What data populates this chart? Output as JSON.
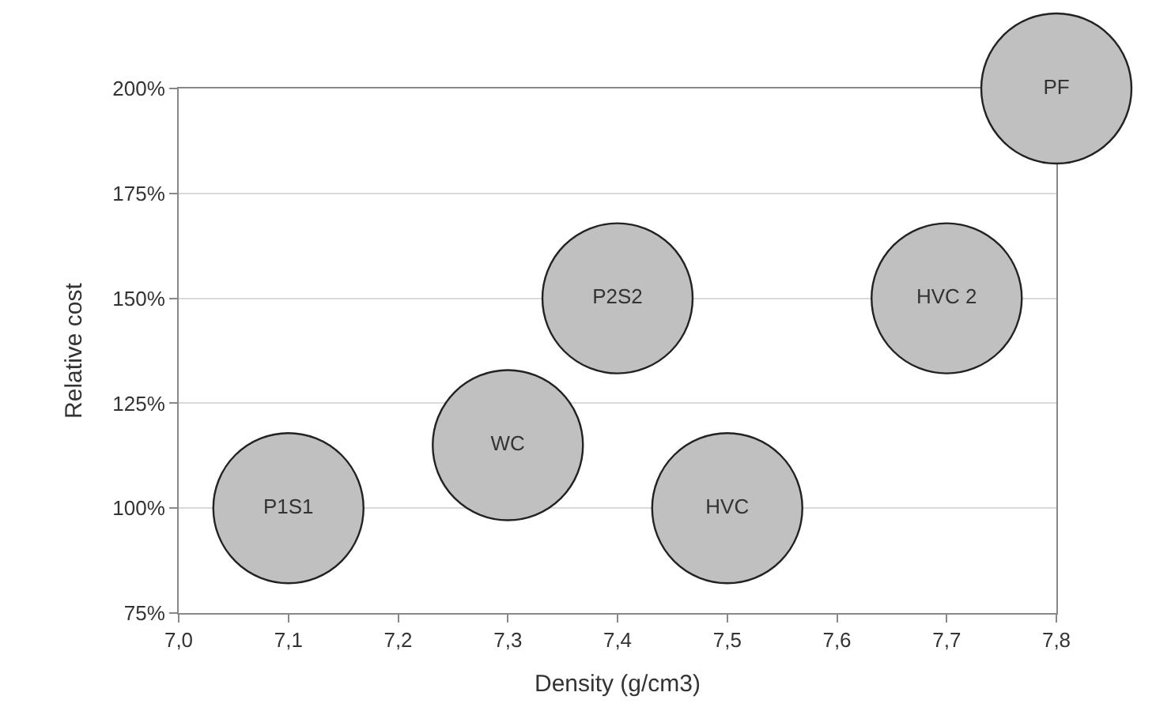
{
  "chart_data": {
    "type": "bubble",
    "xlabel": "Density (g/cm3)",
    "ylabel": "Relative cost",
    "series": [
      {
        "name": "P1S1",
        "color": "#c0c0c0",
        "x": [
          7.1
        ],
        "values": [
          100
        ],
        "sizes": [
          1
        ]
      },
      {
        "name": "WC",
        "color": "#c0c0c0",
        "x": [
          7.3
        ],
        "values": [
          115
        ],
        "sizes": [
          1
        ]
      },
      {
        "name": "P2S2",
        "color": "#c0c0c0",
        "x": [
          7.4
        ],
        "values": [
          150
        ],
        "sizes": [
          1
        ]
      },
      {
        "name": "HVC",
        "color": "#c0c0c0",
        "x": [
          7.5
        ],
        "values": [
          100
        ],
        "sizes": [
          1
        ]
      },
      {
        "name": "HVC 2",
        "color": "#c0c0c0",
        "x": [
          7.7
        ],
        "values": [
          150
        ],
        "sizes": [
          1
        ]
      },
      {
        "name": "PF",
        "color": "#c0c0c0",
        "x": [
          7.8
        ],
        "values": [
          200
        ],
        "sizes": [
          1
        ]
      }
    ],
    "xlim": [
      7.0,
      7.8
    ],
    "xticks": [
      {
        "value": 7.0,
        "label": "7,0"
      },
      {
        "value": 7.1,
        "label": "7,1"
      },
      {
        "value": 7.2,
        "label": "7,2"
      },
      {
        "value": 7.3,
        "label": "7,3"
      },
      {
        "value": 7.4,
        "label": "7,4"
      },
      {
        "value": 7.5,
        "label": "7,5"
      },
      {
        "value": 7.6,
        "label": "7,6"
      },
      {
        "value": 7.7,
        "label": "7,7"
      },
      {
        "value": 7.8,
        "label": "7,8"
      }
    ],
    "ylim": [
      75,
      200
    ],
    "yticks": [
      {
        "value": 75,
        "label": "75%"
      },
      {
        "value": 100,
        "label": "100%"
      },
      {
        "value": 125,
        "label": "125%"
      },
      {
        "value": 150,
        "label": "150%"
      },
      {
        "value": 175,
        "label": "175%"
      },
      {
        "value": 200,
        "label": "200%"
      }
    ],
    "grid": "y"
  }
}
